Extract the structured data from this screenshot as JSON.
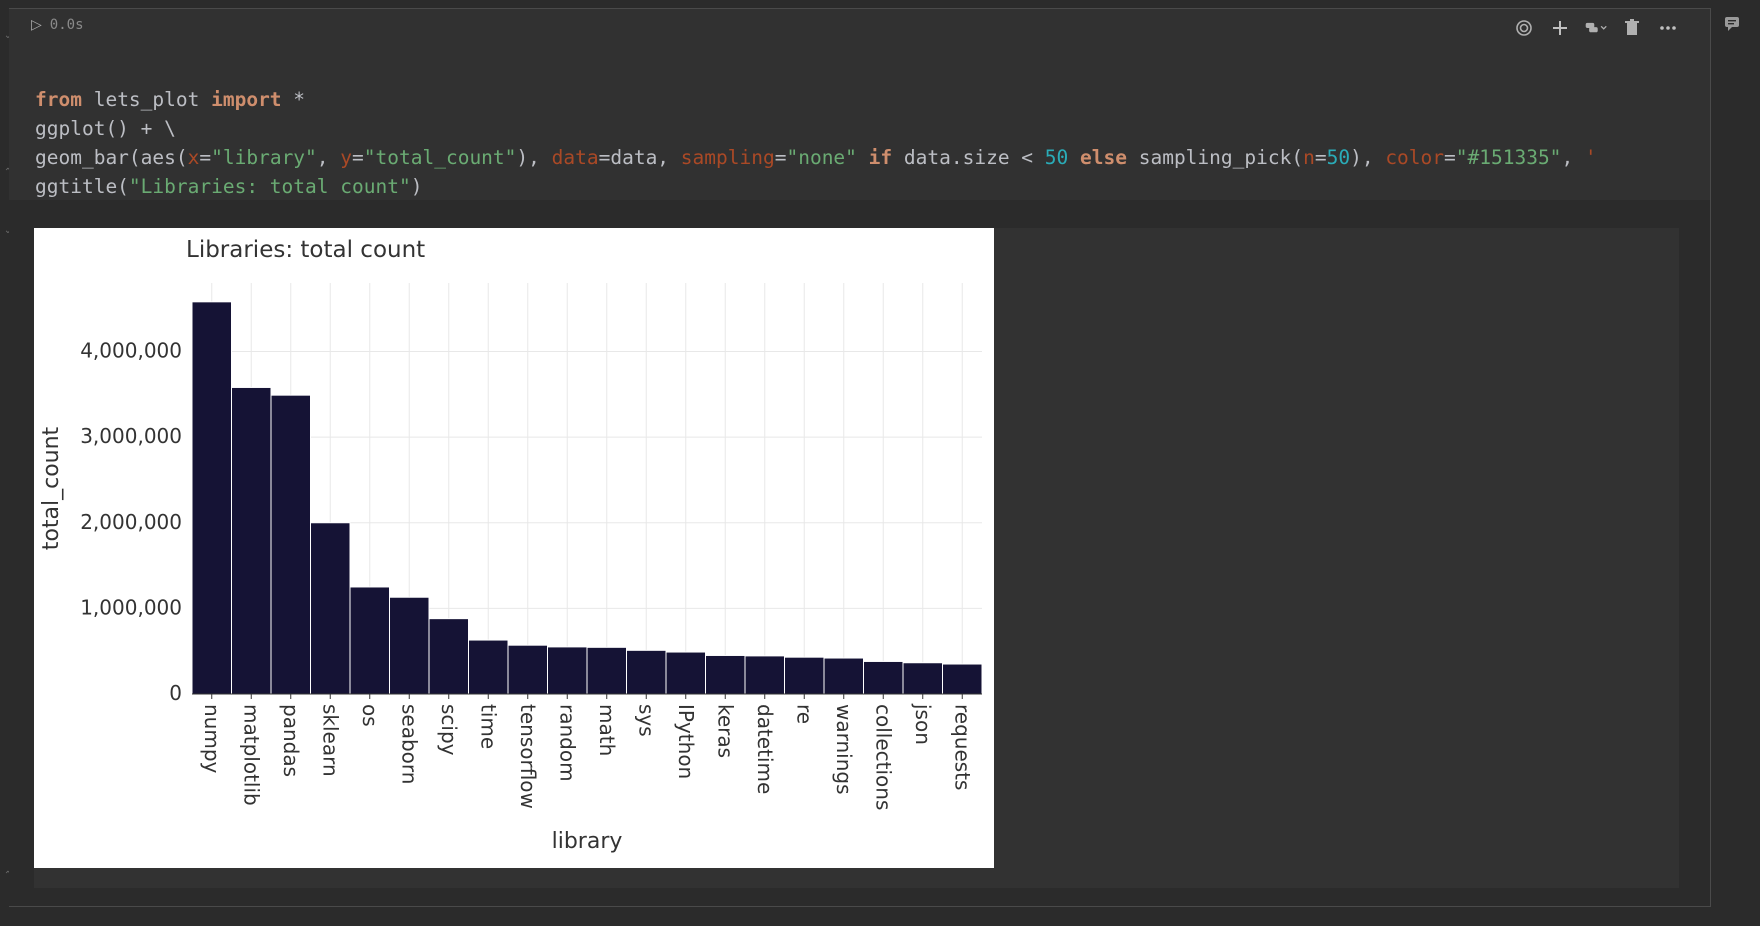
{
  "cell": {
    "run_icon": "play-icon",
    "exec_time": "0.0s",
    "toolbar": [
      "spiral-icon",
      "plus-icon",
      "python-icon",
      "trash-icon",
      "more-icon"
    ],
    "code_lines": [
      "from lets_plot import *",
      "ggplot() + \\",
      "geom_bar(aes(x=\"library\", y=\"total_count\"), data=data, sampling=\"none\" if data.size < 50 else sampling_pick(n=50), color=\"#151335\", ",
      "ggtitle(\"Libraries: total count\")"
    ]
  },
  "colors": {
    "bar_fill": "#151335",
    "bar_stroke": "#ffffff",
    "grid": "#e8e8e8"
  },
  "chart_data": {
    "type": "bar",
    "title": "Libraries: total count",
    "xlabel": "library",
    "ylabel": "total_count",
    "categories": [
      "numpy",
      "matplotlib",
      "pandas",
      "sklearn",
      "os",
      "seaborn",
      "scipy",
      "time",
      "tensorflow",
      "random",
      "math",
      "sys",
      "IPython",
      "keras",
      "datetime",
      "re",
      "warnings",
      "collections",
      "json",
      "requests"
    ],
    "values": [
      4580000,
      3580000,
      3490000,
      2000000,
      1250000,
      1130000,
      880000,
      630000,
      570000,
      550000,
      545000,
      510000,
      490000,
      450000,
      445000,
      430000,
      420000,
      380000,
      365000,
      350000
    ],
    "yticks": [
      0,
      1000000,
      2000000,
      3000000,
      4000000
    ],
    "ytick_labels": [
      "0",
      "1,000,000",
      "2,000,000",
      "3,000,000",
      "4,000,000"
    ],
    "ylim": [
      0,
      4800000
    ],
    "grid": true
  }
}
